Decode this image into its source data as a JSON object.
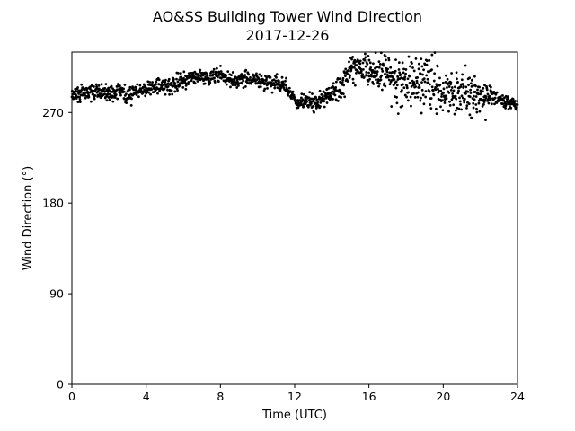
{
  "chart_data": {
    "type": "scatter",
    "title": "AO&SS Building Tower Wind Direction",
    "subtitle": "2017-12-26",
    "xlabel": "Time (UTC)",
    "ylabel": "Wind Direction (°)",
    "xlim": [
      0,
      24
    ],
    "ylim": [
      0,
      330
    ],
    "xticks": [
      0,
      4,
      8,
      12,
      16,
      20,
      24
    ],
    "xtick_labels": [
      "0",
      "4",
      "8",
      "12",
      "16",
      "20",
      "24"
    ],
    "yticks": [
      0,
      90,
      180,
      270
    ],
    "ytick_labels": [
      "0",
      "90",
      "180",
      "270"
    ],
    "grid": false,
    "marker_color": "#000000",
    "trend": [
      [
        0.0,
        290
      ],
      [
        0.5,
        288
      ],
      [
        1.0,
        292
      ],
      [
        1.5,
        291
      ],
      [
        2.0,
        289
      ],
      [
        2.5,
        293
      ],
      [
        3.0,
        287
      ],
      [
        3.5,
        291
      ],
      [
        4.0,
        294
      ],
      [
        4.5,
        296
      ],
      [
        5.0,
        296
      ],
      [
        5.5,
        299
      ],
      [
        6.0,
        303
      ],
      [
        6.5,
        305
      ],
      [
        7.0,
        304
      ],
      [
        7.5,
        306
      ],
      [
        8.0,
        307
      ],
      [
        8.5,
        303
      ],
      [
        9.0,
        302
      ],
      [
        9.5,
        304
      ],
      [
        10.0,
        302
      ],
      [
        10.5,
        300
      ],
      [
        11.0,
        300
      ],
      [
        11.5,
        296
      ],
      [
        12.0,
        281
      ],
      [
        12.5,
        280
      ],
      [
        13.0,
        280
      ],
      [
        13.5,
        282
      ],
      [
        14.0,
        290
      ],
      [
        14.5,
        296
      ],
      [
        15.0,
        310
      ],
      [
        15.5,
        315
      ],
      [
        16.0,
        313
      ],
      [
        16.5,
        310
      ],
      [
        17.0,
        308
      ],
      [
        17.5,
        300
      ],
      [
        18.0,
        305
      ],
      [
        18.5,
        300
      ],
      [
        19.0,
        303
      ],
      [
        19.5,
        300
      ],
      [
        20.0,
        288
      ],
      [
        20.5,
        286
      ],
      [
        21.0,
        292
      ],
      [
        21.5,
        290
      ],
      [
        22.0,
        288
      ],
      [
        22.5,
        287
      ],
      [
        23.0,
        282
      ],
      [
        23.5,
        279
      ],
      [
        24.0,
        278
      ]
    ],
    "spread": [
      [
        0,
        4
      ],
      [
        11.9,
        4
      ],
      [
        12.0,
        3
      ],
      [
        14.0,
        5
      ],
      [
        14.5,
        6
      ],
      [
        17.0,
        10
      ],
      [
        17.5,
        14
      ],
      [
        19.5,
        14
      ],
      [
        20.0,
        12
      ],
      [
        21.5,
        10
      ],
      [
        22.5,
        8
      ],
      [
        23.0,
        3
      ],
      [
        24,
        3
      ]
    ],
    "point_count": 1440
  }
}
